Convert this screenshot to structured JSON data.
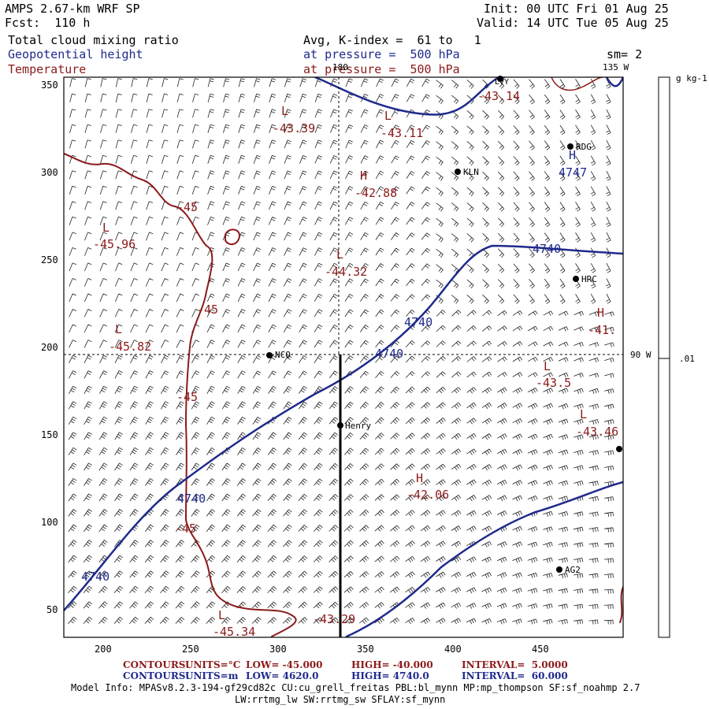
{
  "header": {
    "model": "AMPS 2.67-km WRF SP",
    "fcst": "Fcst:  110 h",
    "init": "Init: 00 UTC Fri 01 Aug 25",
    "valid": "Valid: 14 UTC Tue 05 Aug 25",
    "field1": "Total cloud mixing ratio",
    "field2": "Geopotential height",
    "field3": "Temperature",
    "avg1": "Avg, K-index =  61 to   1",
    "avg2": "at pressure =  500 hPa",
    "avg3": "at pressure =  500 hPa",
    "sm": "sm= 2"
  },
  "colorbar": {
    "unit": "g kg-1",
    "tick": ".01"
  },
  "axes": {
    "x_ticks": [
      "200",
      "250",
      "300",
      "350",
      "400",
      "450"
    ],
    "y_ticks": [
      "350",
      "300",
      "250",
      "200",
      "150",
      "100",
      "50"
    ],
    "lon_labels": [
      "180",
      "135 W",
      "90 W"
    ]
  },
  "stations": [
    "NCO",
    "Henry",
    "KLN",
    "RDG",
    "HRC",
    "AG2",
    "LVY"
  ],
  "temperature_labels": [
    "-43.39",
    "-43.11",
    "-42.88",
    "-45.96",
    "-44.32",
    "-45.82",
    "-43.5",
    "-43.46",
    "-42.06",
    "-45.34",
    "-43.29",
    "-41.",
    "-43.14",
    "-45"
  ],
  "height_labels": [
    "4747",
    "4740"
  ],
  "extrema_letters": [
    "L",
    "H"
  ],
  "footer": {
    "c1_label": "CONTOURS:",
    "c1_units": "UNITS=°C",
    "c1_low": "LOW= -45.000",
    "c1_high": "HIGH= -40.000",
    "c1_int": "INTERVAL=  5.0000",
    "c2_label": "CONTOURS:",
    "c2_units": "UNITS=m",
    "c2_low": "LOW= 4620.0",
    "c2_high": "HIGH= 4740.0",
    "c2_int": "INTERVAL=  60.000",
    "model_info": "Model Info: MPASv8.2.3-194-gf29cd82c CU:cu_grell_freitas PBL:bl_mynn MP:mp_thompson SF:sf_noahmp 2.7",
    "model_info2": "LW:rrtmg_lw SW:rrtmg_sw SFLAY:sf_mynn"
  },
  "colors": {
    "height": "#1f2a8c",
    "temperature": "#8b1a1a",
    "frame": "#000000"
  }
}
